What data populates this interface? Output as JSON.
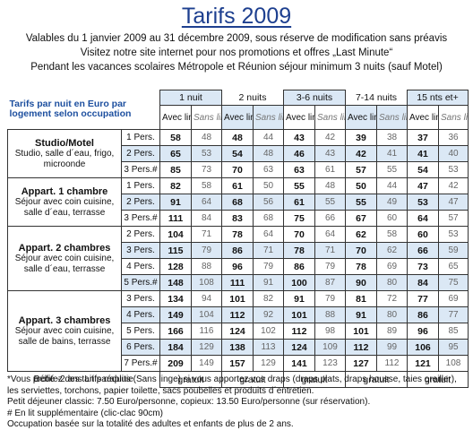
{
  "title": "Tarifs 2009",
  "intro": [
    "Valables du 1 janvier 2009 au 31 décembre 2009, sous réserve de modification sans préavis",
    "Visitez notre site internet pour nos promotions et offres „Last Minute“",
    "Pendant les vacances scolaires Métropole et Réunion séjour minimum 3 nuits (sauf Motel)"
  ],
  "table": {
    "header_label": "Tarifs par nuit en Euro par logement selon occupation",
    "durations": [
      "1 nuit",
      "2 nuits",
      "3-6 nuits",
      "7-14 nuits",
      "15 nts et+"
    ],
    "with_linen": "Avec linge",
    "without_linen": "Sans linge*",
    "room_types": [
      {
        "title": "Studio/Motel",
        "desc": "Studio, salle d´eau, frigo, microonde",
        "rows": [
          {
            "pers": "1 Pers.",
            "prices": [
              "58",
              "48",
              "48",
              "44",
              "43",
              "42",
              "39",
              "38",
              "37",
              "36"
            ]
          },
          {
            "pers": "2 Pers.",
            "prices": [
              "65",
              "53",
              "54",
              "48",
              "46",
              "43",
              "42",
              "41",
              "41",
              "40"
            ]
          },
          {
            "pers": "3 Pers.#",
            "prices": [
              "85",
              "73",
              "70",
              "63",
              "63",
              "61",
              "57",
              "55",
              "54",
              "53"
            ]
          }
        ]
      },
      {
        "title": "Appart. 1 chambre",
        "desc": "Séjour avec coin cuisine, salle d´eau, terrasse",
        "rows": [
          {
            "pers": "1 Pers.",
            "prices": [
              "82",
              "58",
              "61",
              "50",
              "55",
              "48",
              "50",
              "44",
              "47",
              "42"
            ]
          },
          {
            "pers": "2 Pers.",
            "prices": [
              "91",
              "64",
              "68",
              "56",
              "61",
              "55",
              "55",
              "49",
              "53",
              "47"
            ]
          },
          {
            "pers": "3 Pers.#",
            "prices": [
              "111",
              "84",
              "83",
              "68",
              "75",
              "66",
              "67",
              "60",
              "64",
              "57"
            ]
          }
        ]
      },
      {
        "title": "Appart. 2 chambres",
        "desc": "Séjour avec coin cuisine, salle d´eau, terrasse",
        "rows": [
          {
            "pers": "2 Pers.",
            "prices": [
              "104",
              "71",
              "78",
              "64",
              "70",
              "64",
              "62",
              "58",
              "60",
              "53"
            ]
          },
          {
            "pers": "3 Pers.",
            "prices": [
              "115",
              "79",
              "86",
              "71",
              "78",
              "71",
              "70",
              "62",
              "66",
              "59"
            ]
          },
          {
            "pers": "4 Pers.",
            "prices": [
              "128",
              "88",
              "96",
              "79",
              "86",
              "79",
              "78",
              "69",
              "73",
              "65"
            ]
          },
          {
            "pers": "5 Pers.#",
            "prices": [
              "148",
              "108",
              "111",
              "91",
              "100",
              "87",
              "90",
              "80",
              "84",
              "75"
            ]
          }
        ]
      },
      {
        "title": "Appart. 3 chambres",
        "desc": "Séjour avec coin cuisine, salle de bains, terrasse",
        "rows": [
          {
            "pers": "3 Pers.",
            "prices": [
              "134",
              "94",
              "101",
              "82",
              "91",
              "79",
              "81",
              "72",
              "77",
              "69"
            ]
          },
          {
            "pers": "4 Pers.",
            "prices": [
              "149",
              "104",
              "112",
              "92",
              "101",
              "88",
              "91",
              "80",
              "86",
              "77"
            ]
          },
          {
            "pers": "5 Pers.",
            "prices": [
              "166",
              "116",
              "124",
              "102",
              "112",
              "98",
              "101",
              "89",
              "96",
              "85"
            ]
          },
          {
            "pers": "6 Pers.",
            "prices": [
              "184",
              "129",
              "138",
              "113",
              "124",
              "109",
              "112",
              "99",
              "106",
              "95"
            ]
          },
          {
            "pers": "7 Pers.#",
            "prices": [
              "209",
              "149",
              "157",
              "129",
              "141",
              "123",
              "127",
              "112",
              "121",
              "108"
            ]
          }
        ]
      }
    ],
    "baby_label": "Bébé -2 ans Lit parapluie",
    "baby_value": "gratuit"
  },
  "notes": [
    "*Vous profitez des tarifs réduits (Sans linge) si vous apportez vos draps (draps plats, draps housse, taies oreiller), les serviettes, torchons, papier toilette, sacs poubelles et produits d´entretien.",
    "Petit déjeuner classic: 7.50 Euro/personne, copieux: 13.50 Euro/personne (sur réservation).",
    "# En lit supplémentaire (clic-clac 90cm)",
    "Occupation basée sur la totalité des adultes et enfants de plus de 2 ans."
  ]
}
